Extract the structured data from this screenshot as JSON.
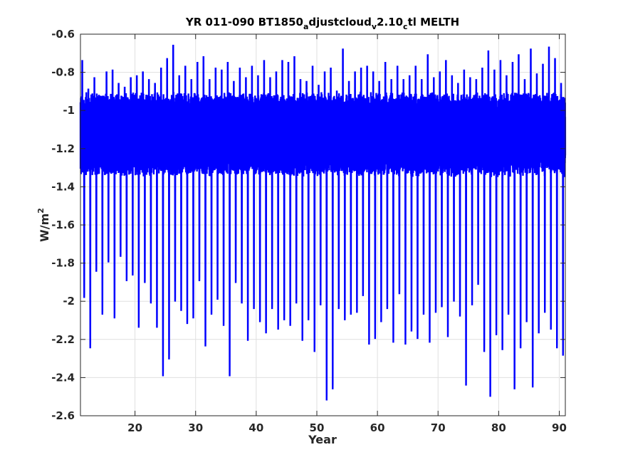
{
  "chart_data": {
    "type": "line",
    "title": {
      "part1": "YR 011-090 BT1850",
      "sub1": "a",
      "part2": "djustcloud",
      "sub2": "v",
      "part3": "2.10",
      "sub3": "c",
      "part4": "tl MELTH"
    },
    "xlabel": "Year",
    "ylabel": {
      "base": "W/m",
      "sup": "2"
    },
    "xlim": [
      11,
      91
    ],
    "ylim": [
      -2.6,
      -0.6
    ],
    "xticks": [
      20,
      30,
      40,
      50,
      60,
      70,
      80,
      90
    ],
    "xtick_labels": [
      "20",
      "30",
      "40",
      "50",
      "60",
      "70",
      "80",
      "90"
    ],
    "yticks": [
      -2.6,
      -2.4,
      -2.2,
      -2.0,
      -1.8,
      -1.6,
      -1.4,
      -1.2,
      -1.0,
      -0.8,
      -0.6
    ],
    "ytick_labels": [
      "-2.6",
      "-2.4",
      "-2.2",
      "-2",
      "-1.8",
      "-1.6",
      "-1.4",
      "-1.2",
      "-1",
      "-0.8",
      "-0.6"
    ],
    "grid": true,
    "series_color": "#0000ff",
    "annual_extremes": {
      "years": [
        11,
        12,
        13,
        14,
        15,
        16,
        17,
        18,
        19,
        20,
        21,
        22,
        23,
        24,
        25,
        26,
        27,
        28,
        29,
        30,
        31,
        32,
        33,
        34,
        35,
        36,
        37,
        38,
        39,
        40,
        41,
        42,
        43,
        44,
        45,
        46,
        47,
        48,
        49,
        50,
        51,
        52,
        53,
        54,
        55,
        56,
        57,
        58,
        59,
        60,
        61,
        62,
        63,
        64,
        65,
        66,
        67,
        68,
        69,
        70,
        71,
        72,
        73,
        74,
        75,
        76,
        77,
        78,
        79,
        80,
        81,
        82,
        83,
        84,
        85,
        86,
        87,
        88,
        89,
        90
      ],
      "min": [
        -2.0,
        -2.27,
        -1.86,
        -2.09,
        -1.81,
        -2.11,
        -1.78,
        -1.91,
        -1.88,
        -2.16,
        -1.92,
        -2.03,
        -2.16,
        -2.42,
        -2.33,
        -2.02,
        -2.07,
        -2.14,
        -2.11,
        -1.91,
        -2.26,
        -2.09,
        -2.01,
        -2.15,
        -2.42,
        -1.92,
        -2.03,
        -2.23,
        -2.06,
        -2.13,
        -2.19,
        -2.06,
        -2.17,
        -2.12,
        -2.15,
        -2.03,
        -2.23,
        -2.12,
        -2.29,
        -2.04,
        -2.55,
        -2.49,
        -2.06,
        -2.12,
        -2.09,
        -2.08,
        -1.99,
        -2.25,
        -2.22,
        -2.13,
        -2.06,
        -2.24,
        -1.98,
        -2.25,
        -2.18,
        -2.22,
        -2.09,
        -2.24,
        -2.08,
        -2.05,
        -2.21,
        -2.02,
        -2.1,
        -2.47,
        -2.04,
        -1.93,
        -2.29,
        -2.53,
        -2.2,
        -2.28,
        -2.09,
        -2.49,
        -2.27,
        -2.13,
        -2.48,
        -2.19,
        -2.08,
        -2.17,
        -2.27,
        -2.31
      ],
      "max": [
        -0.74,
        -0.89,
        -0.83,
        -0.94,
        -0.8,
        -0.79,
        -0.86,
        -0.88,
        -0.83,
        -0.82,
        -0.8,
        -0.84,
        -0.86,
        -0.78,
        -0.73,
        -0.66,
        -0.82,
        -0.77,
        -0.84,
        -0.75,
        -0.72,
        -0.84,
        -0.78,
        -0.79,
        -0.75,
        -0.85,
        -0.78,
        -0.83,
        -0.77,
        -0.82,
        -0.74,
        -0.83,
        -0.8,
        -0.74,
        -0.75,
        -0.72,
        -0.84,
        -0.85,
        -0.77,
        -0.87,
        -0.8,
        -0.78,
        -0.9,
        -0.68,
        -0.85,
        -0.8,
        -0.78,
        -0.77,
        -0.8,
        -0.85,
        -0.75,
        -0.84,
        -0.77,
        -0.84,
        -0.82,
        -0.77,
        -0.84,
        -0.71,
        -0.83,
        -0.8,
        -0.74,
        -0.82,
        -0.86,
        -0.79,
        -0.83,
        -0.84,
        -0.78,
        -0.69,
        -0.79,
        -0.74,
        -0.82,
        -0.75,
        -0.71,
        -0.84,
        -0.68,
        -0.81,
        -0.76,
        -0.67,
        -0.73,
        -0.86
      ]
    }
  }
}
